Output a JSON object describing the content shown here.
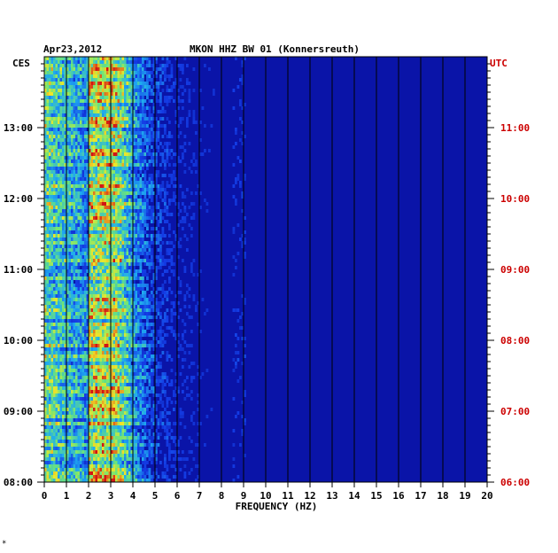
{
  "chart_data": {
    "type": "heatmap",
    "title": "MKON HHZ BW 01 (Konnersreuth)",
    "date": "Apr23,2012",
    "xlabel": "FREQUENCY (HZ)",
    "xlim": [
      0,
      20
    ],
    "x_ticks": [
      0,
      1,
      2,
      3,
      4,
      5,
      6,
      7,
      8,
      9,
      10,
      11,
      12,
      13,
      14,
      15,
      16,
      17,
      18,
      19,
      20
    ],
    "left_axis": {
      "label": "CES",
      "ticks": [
        "08:00",
        "09:00",
        "10:00",
        "11:00",
        "12:00",
        "13:00"
      ],
      "tick_hours": [
        8,
        9,
        10,
        11,
        12,
        13
      ],
      "range_hours": [
        8,
        14
      ],
      "color": "#000000"
    },
    "right_axis": {
      "label": "UTC",
      "ticks": [
        "06:00",
        "07:00",
        "08:00",
        "09:00",
        "10:00",
        "11:00"
      ],
      "tick_hours": [
        6,
        7,
        8,
        9,
        10,
        11
      ],
      "range_hours": [
        6,
        12
      ],
      "color": "#cc0000"
    },
    "grid_vertical_hz": [
      1,
      2,
      3,
      4,
      5,
      6,
      7,
      8,
      9,
      10,
      11,
      12,
      13,
      14,
      15,
      16,
      17,
      18,
      19
    ],
    "dominant_band_hz": [
      2,
      3.3
    ],
    "colors": {
      "background": "#0a14a8",
      "high": "#d01010",
      "right_axis_text": "#cc0000"
    },
    "footnote": "*"
  }
}
